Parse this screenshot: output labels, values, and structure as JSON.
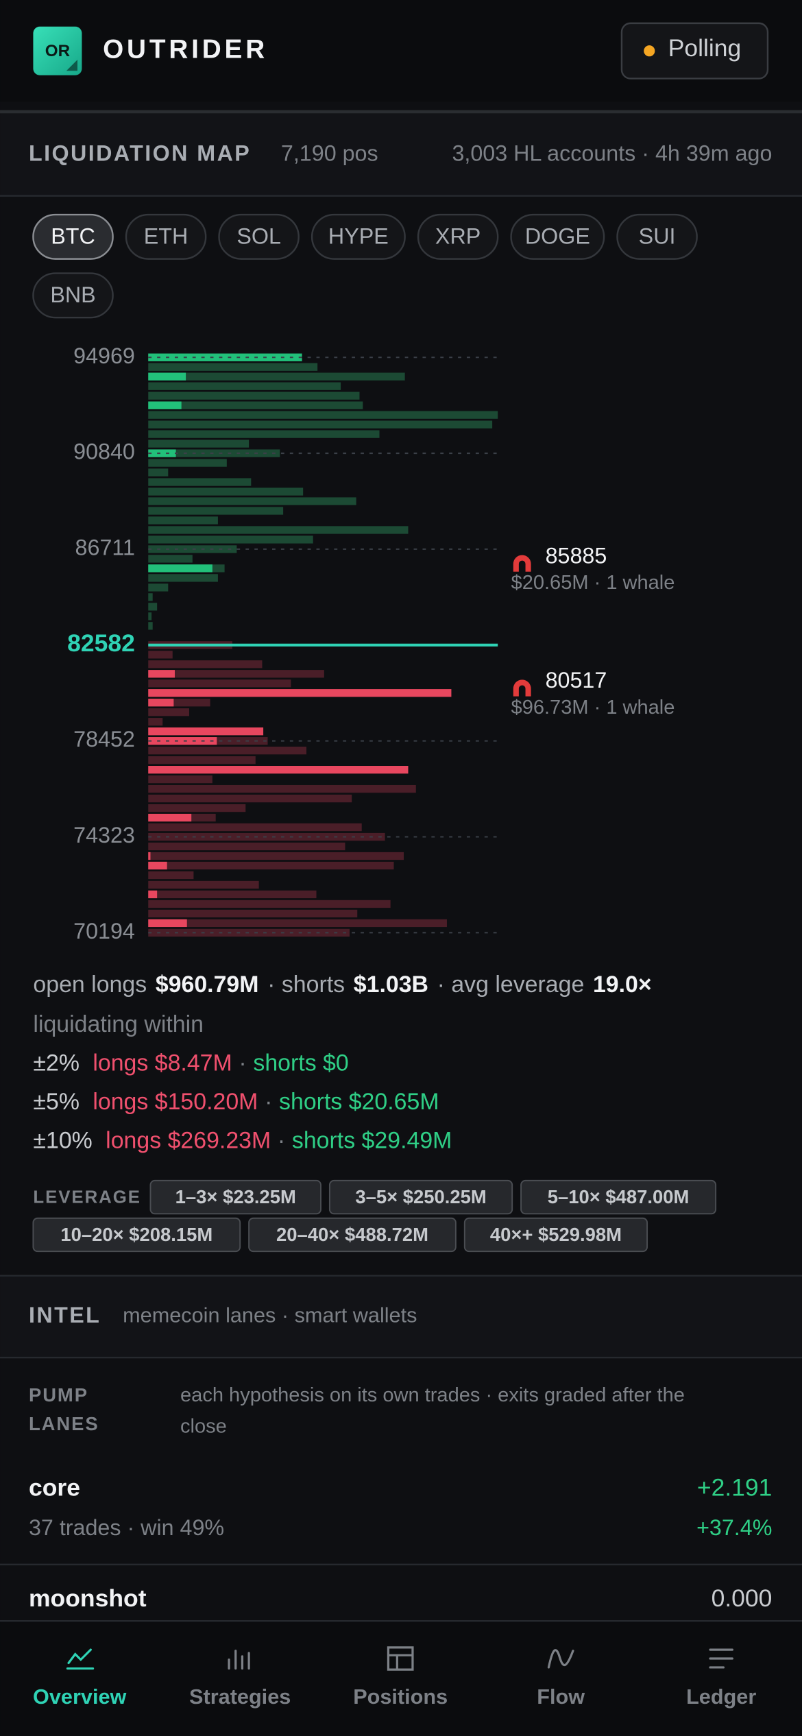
{
  "header": {
    "logo": "OR",
    "title": "OUTRIDER",
    "status": "Polling"
  },
  "liquidation_map": {
    "title": "LIQUIDATION MAP",
    "positions": "7,190 pos",
    "accounts": "3,003 HL accounts · 4h 39m ago",
    "tabs": [
      "BTC",
      "ETH",
      "SOL",
      "HYPE",
      "XRP",
      "DOGE",
      "SUI",
      "BNB"
    ]
  },
  "chart_data": {
    "type": "bar",
    "orientation": "horizontal",
    "ylim": [
      70194,
      94969
    ],
    "yticks": [
      94969,
      90840,
      86711,
      78452,
      74323,
      70194
    ],
    "xlim": [
      0,
      316
    ],
    "current_price": 82582,
    "current_color": "#2fd3b5",
    "grid": true,
    "series": [
      {
        "color": "#1c4a34",
        "values": [
          139,
          153,
          232,
          174,
          191,
          194,
          316,
          311,
          209,
          91,
          119,
          71,
          18,
          93,
          140,
          188,
          122,
          63,
          235,
          149,
          80,
          40,
          69,
          63,
          18,
          4,
          8,
          3,
          4,
          null,
          null,
          null,
          null,
          null,
          null,
          null,
          null,
          null,
          null,
          null,
          null,
          null,
          null,
          null,
          null,
          null,
          null,
          null,
          null,
          null,
          null,
          null,
          null,
          null,
          null,
          null,
          null,
          null,
          null,
          null,
          null
        ]
      },
      {
        "color": "#22c07a",
        "values": [
          139,
          null,
          34,
          null,
          null,
          30,
          null,
          null,
          null,
          null,
          25,
          null,
          null,
          null,
          null,
          null,
          null,
          null,
          null,
          null,
          null,
          null,
          58,
          null,
          null,
          null,
          null,
          null,
          null,
          null,
          null,
          null,
          null,
          null,
          null,
          null,
          null,
          null,
          null,
          null,
          null,
          null,
          null,
          null,
          null,
          null,
          null,
          null,
          null,
          null,
          null,
          null,
          null,
          null,
          null,
          null,
          null,
          null,
          null,
          null,
          null
        ]
      },
      {
        "color": "#4a1e28",
        "values": [
          null,
          null,
          null,
          null,
          null,
          null,
          null,
          null,
          null,
          null,
          null,
          null,
          null,
          null,
          null,
          null,
          null,
          null,
          null,
          null,
          null,
          null,
          null,
          null,
          null,
          null,
          null,
          null,
          null,
          null,
          76,
          22,
          103,
          159,
          129,
          274,
          56,
          37,
          13,
          104,
          108,
          143,
          97,
          235,
          58,
          242,
          184,
          88,
          61,
          193,
          214,
          178,
          231,
          222,
          41,
          100,
          152,
          219,
          189,
          270,
          182
        ]
      },
      {
        "color": "#e8475f",
        "values": [
          null,
          null,
          null,
          null,
          null,
          null,
          null,
          null,
          null,
          null,
          null,
          null,
          null,
          null,
          null,
          null,
          null,
          null,
          null,
          null,
          null,
          null,
          null,
          null,
          null,
          null,
          null,
          null,
          null,
          null,
          null,
          null,
          null,
          24,
          null,
          274,
          23,
          null,
          null,
          104,
          62,
          null,
          null,
          235,
          null,
          null,
          null,
          null,
          39,
          null,
          null,
          null,
          2,
          17,
          null,
          null,
          8,
          null,
          null,
          35,
          null
        ]
      }
    ],
    "annotations": [
      {
        "value": 85885,
        "note": "$20.65M · 1 whale"
      },
      {
        "value": 80517,
        "note": "$96.73M · 1 whale"
      }
    ]
  },
  "summary": {
    "open_longs_label": "open longs",
    "open_longs": "$960.79M",
    "shorts_label": "· shorts",
    "shorts": "$1.03B",
    "leverage_label": "· avg leverage",
    "leverage": "19.0×",
    "within_label": "liquidating within",
    "rows": [
      {
        "range": "±2%",
        "longs": "longs $8.47M",
        "sep": "·",
        "shorts": "shorts $0"
      },
      {
        "range": "±5%",
        "longs": "longs $150.20M",
        "sep": "·",
        "shorts": "shorts $20.65M"
      },
      {
        "range": "±10%",
        "longs": "longs $269.23M",
        "sep": "·",
        "shorts": "shorts $29.49M"
      }
    ]
  },
  "leverage": {
    "label": "LEVERAGE",
    "chips": [
      "1–3× $23.25M",
      "3–5× $250.25M",
      "5–10× $487.00M",
      "10–20× $208.15M",
      "20–40× $488.72M",
      "40×+ $529.98M"
    ]
  },
  "intel": {
    "title": "INTEL",
    "subtitle": "memecoin lanes · smart wallets"
  },
  "pump_lanes": {
    "title": [
      "PUMP",
      "LANES"
    ],
    "description": [
      "each hypothesis on its own trades · exits graded after the",
      "close"
    ],
    "lanes": [
      {
        "name": "core",
        "pnl": "+2.191",
        "stats": "37 trades · win 49%",
        "pct": "+37.4%"
      },
      {
        "name": "moonshot",
        "pnl": "0.000"
      }
    ]
  },
  "nav": [
    "Overview",
    "Strategies",
    "Positions",
    "Flow",
    "Ledger"
  ]
}
